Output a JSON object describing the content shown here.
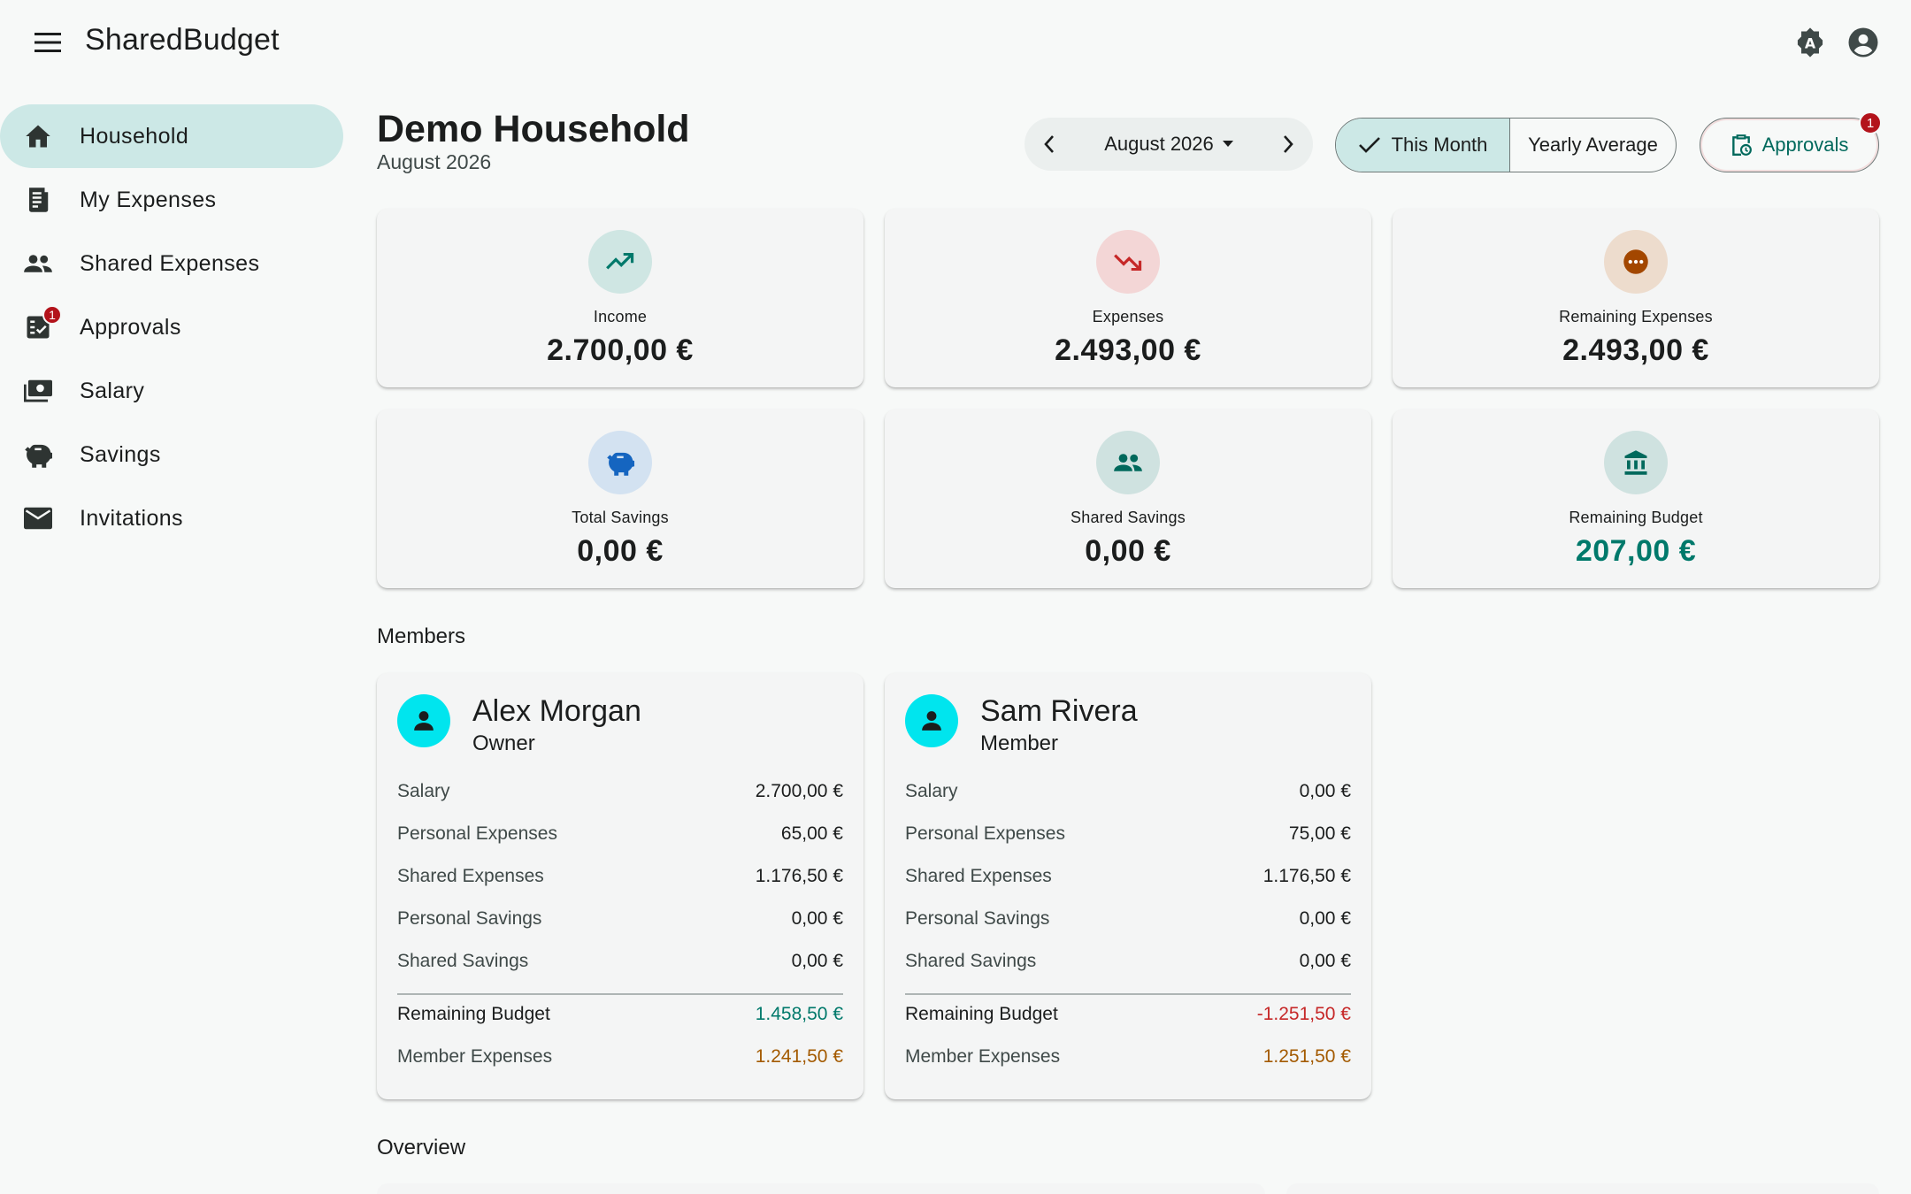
{
  "app": {
    "title": "SharedBudget"
  },
  "topbar": {
    "menu_icon": "menu-icon",
    "theme_icon": "auto-theme-icon",
    "account_icon": "account-circle-icon"
  },
  "sidebar": {
    "items": [
      {
        "label": "Household",
        "icon": "home-icon",
        "active": true
      },
      {
        "label": "My Expenses",
        "icon": "receipt-icon"
      },
      {
        "label": "Shared Expenses",
        "icon": "group-icon"
      },
      {
        "label": "Approvals",
        "icon": "approval-icon",
        "badge": "1"
      },
      {
        "label": "Salary",
        "icon": "payments-icon"
      },
      {
        "label": "Savings",
        "icon": "piggy-bank-icon"
      },
      {
        "label": "Invitations",
        "icon": "mail-icon"
      }
    ]
  },
  "header": {
    "title": "Demo Household",
    "subtitle": "August 2026",
    "month_selector": "August 2026",
    "view_toggle": {
      "this_month": "This Month",
      "yearly_average": "Yearly Average",
      "selected": "this_month"
    },
    "approvals": {
      "label": "Approvals",
      "badge": "1"
    }
  },
  "stats": [
    {
      "label": "Income",
      "value": "2.700,00 €",
      "icon": "trending-up-icon",
      "icon_bg": "#cfe6e3",
      "icon_color": "#00796b"
    },
    {
      "label": "Expenses",
      "value": "2.493,00 €",
      "icon": "trending-down-icon",
      "icon_bg": "#f3d6d6",
      "icon_color": "#c62828"
    },
    {
      "label": "Remaining Expenses",
      "value": "2.493,00 €",
      "icon": "pending-icon",
      "icon_bg": "#eddccd",
      "icon_color": "#a34700"
    },
    {
      "label": "Total Savings",
      "value": "0,00 €",
      "icon": "savings-icon",
      "icon_bg": "#d3e2f1",
      "icon_color": "#1565c0"
    },
    {
      "label": "Shared Savings",
      "value": "0,00 €",
      "icon": "group-icon",
      "icon_bg": "#cfe2e0",
      "icon_color": "#00695c"
    },
    {
      "label": "Remaining Budget",
      "value": "207,00 €",
      "icon": "bank-icon",
      "icon_bg": "#cfe2e0",
      "icon_color": "#00695c",
      "accent": true
    }
  ],
  "members_section": {
    "title": "Members"
  },
  "members": [
    {
      "name": "Alex Morgan",
      "role": "Owner",
      "rows": [
        {
          "label": "Salary",
          "value": "2.700,00 €"
        },
        {
          "label": "Personal Expenses",
          "value": "65,00 €"
        },
        {
          "label": "Shared Expenses",
          "value": "1.176,50 €"
        },
        {
          "label": "Personal Savings",
          "value": "0,00 €"
        },
        {
          "label": "Shared Savings",
          "value": "0,00 €"
        }
      ],
      "remaining_budget": {
        "label": "Remaining Budget",
        "value": "1.458,50 €"
      },
      "member_expenses": {
        "label": "Member Expenses",
        "value": "1.241,50 €"
      }
    },
    {
      "name": "Sam Rivera",
      "role": "Member",
      "rows": [
        {
          "label": "Salary",
          "value": "0,00 €"
        },
        {
          "label": "Personal Expenses",
          "value": "75,00 €"
        },
        {
          "label": "Shared Expenses",
          "value": "1.176,50 €"
        },
        {
          "label": "Personal Savings",
          "value": "0,00 €"
        },
        {
          "label": "Shared Savings",
          "value": "0,00 €"
        }
      ],
      "remaining_budget": {
        "label": "Remaining Budget",
        "value": "-1.251,50 €"
      },
      "member_expenses": {
        "label": "Member Expenses",
        "value": "1.251,50 €"
      }
    }
  ],
  "overview_section": {
    "title": "Overview"
  },
  "colors": {
    "accent": "#00796b",
    "active_nav": "#cce8e6",
    "negative": "#c62828",
    "warning": "#a35a00",
    "badge": "#b3131b"
  }
}
